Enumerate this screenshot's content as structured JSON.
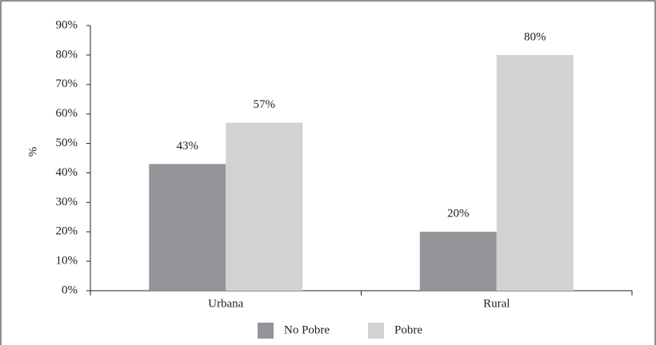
{
  "chart_data": {
    "type": "bar",
    "categories": [
      "Urbana",
      "Rural"
    ],
    "series": [
      {
        "name": "No Pobre",
        "color": "#939598",
        "values": [
          43,
          20
        ],
        "value_labels": [
          "43%",
          "20%"
        ]
      },
      {
        "name": "Pobre",
        "color": "#d1d2d4",
        "values": [
          57,
          80
        ],
        "value_labels": [
          "57%",
          "80%"
        ]
      }
    ],
    "y_label": "%",
    "ylim": [
      0,
      90
    ],
    "yticks": [
      {
        "value": 0,
        "label": "0%"
      },
      {
        "value": 10,
        "label": "10%"
      },
      {
        "value": 20,
        "label": "20%"
      },
      {
        "value": 30,
        "label": "30%"
      },
      {
        "value": 40,
        "label": "40%"
      },
      {
        "value": 50,
        "label": "50%"
      },
      {
        "value": 60,
        "label": "60%"
      },
      {
        "value": 70,
        "label": "70%"
      },
      {
        "value": 80,
        "label": "80%"
      },
      {
        "value": 90,
        "label": "90%"
      }
    ],
    "legend": "bottom"
  }
}
